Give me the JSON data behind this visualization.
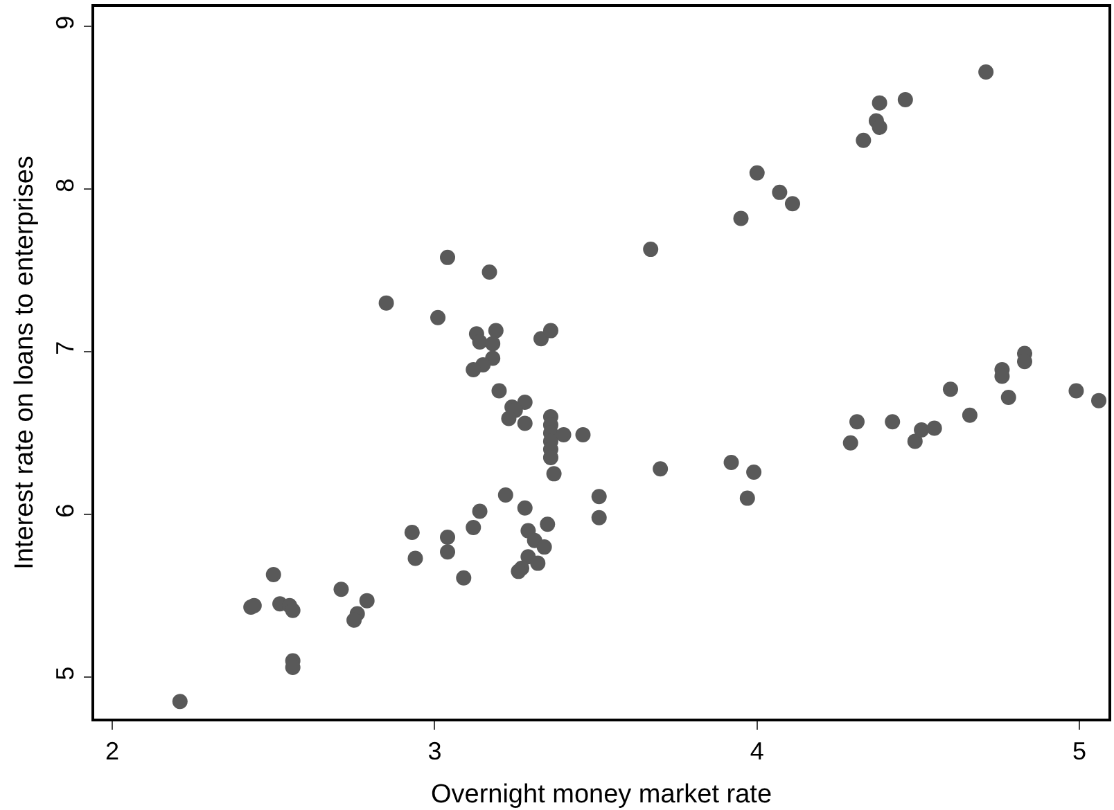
{
  "chart_data": {
    "type": "scatter",
    "xlabel": "Overnight money market rate",
    "ylabel": "Interest rate on loans to enterprises",
    "xlim": [
      1.944,
      5.09
    ],
    "ylim": [
      4.745,
      9.12
    ],
    "xticks": [
      2,
      3,
      4,
      5
    ],
    "yticks": [
      5,
      6,
      7,
      8,
      9
    ],
    "marker": "circle",
    "series": [
      {
        "color": "#595959",
        "x": [
          2.21,
          2.43,
          2.44,
          2.5,
          2.52,
          2.55,
          2.56,
          2.56,
          2.56,
          2.71,
          2.79,
          2.76,
          2.75,
          2.93,
          2.94,
          3.04,
          3.04,
          3.09,
          3.12,
          3.14,
          3.22,
          3.28,
          3.35,
          3.29,
          3.31,
          3.34,
          3.29,
          3.32,
          3.27,
          3.26,
          3.51,
          3.51,
          3.2,
          3.24,
          3.28,
          3.25,
          3.23,
          3.28,
          3.36,
          3.36,
          3.36,
          3.36,
          3.36,
          3.36,
          3.4,
          3.37,
          3.46,
          3.7,
          3.92,
          3.99,
          3.97,
          4.29,
          4.31,
          4.42,
          4.49,
          4.51,
          4.55,
          4.66,
          4.6,
          4.78,
          4.99,
          5.06,
          4.76,
          4.76,
          4.83,
          4.83,
          3.67,
          3.95,
          4.0,
          4.07,
          4.11,
          4.33,
          4.37,
          4.38,
          4.38,
          4.46,
          4.71,
          3.04,
          3.17,
          2.85,
          3.01,
          3.13,
          3.19,
          3.14,
          3.18,
          3.18,
          3.15,
          3.12,
          3.33,
          3.36
        ],
        "values": [
          4.85,
          5.43,
          5.44,
          5.63,
          5.45,
          5.44,
          5.41,
          5.1,
          5.06,
          5.54,
          5.47,
          5.39,
          5.35,
          5.89,
          5.73,
          5.86,
          5.77,
          5.61,
          5.92,
          6.02,
          6.12,
          6.04,
          5.94,
          5.9,
          5.84,
          5.8,
          5.74,
          5.7,
          5.67,
          5.65,
          6.11,
          5.98,
          6.76,
          6.66,
          6.69,
          6.64,
          6.59,
          6.56,
          6.6,
          6.55,
          6.5,
          6.45,
          6.4,
          6.35,
          6.49,
          6.25,
          6.49,
          6.28,
          6.32,
          6.26,
          6.1,
          6.44,
          6.57,
          6.57,
          6.45,
          6.52,
          6.53,
          6.61,
          6.77,
          6.72,
          6.76,
          6.7,
          6.89,
          6.85,
          6.99,
          6.94,
          7.63,
          7.82,
          8.1,
          7.98,
          7.91,
          8.3,
          8.42,
          8.38,
          8.53,
          8.55,
          8.72,
          7.58,
          7.49,
          7.3,
          7.21,
          7.11,
          7.13,
          7.06,
          7.05,
          6.96,
          6.92,
          6.89,
          7.08,
          7.13
        ]
      }
    ]
  }
}
